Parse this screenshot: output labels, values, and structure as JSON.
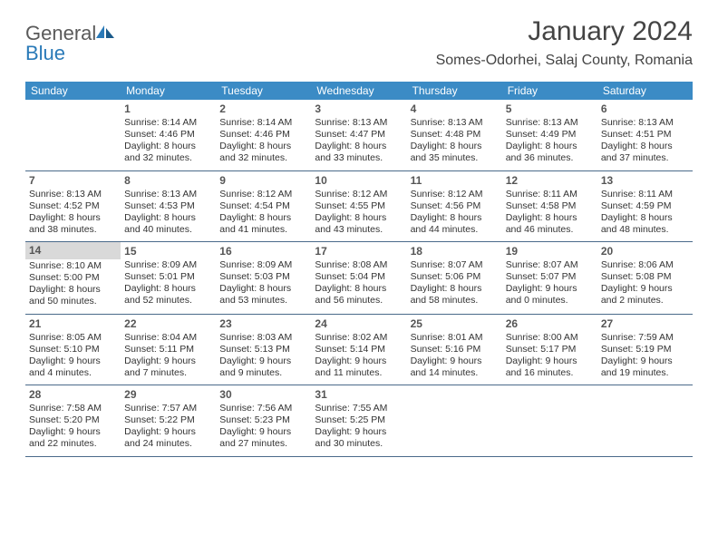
{
  "logo": {
    "word1": "General",
    "word2": "Blue"
  },
  "title": "January 2024",
  "location": "Somes-Odorhei, Salaj County, Romania",
  "day_headers": [
    "Sunday",
    "Monday",
    "Tuesday",
    "Wednesday",
    "Thursday",
    "Friday",
    "Saturday"
  ],
  "colors": {
    "header_bg": "#3b8bc5",
    "header_text": "#ffffff",
    "row_border": "#4a6a8a",
    "highlight_bg": "#d9d9d9",
    "logo_general": "#5a5a5a",
    "logo_blue": "#2a7ab8",
    "title_color": "#444444",
    "body_text": "#333333",
    "background": "#ffffff"
  },
  "typography": {
    "title_fontsize": 30,
    "location_fontsize": 16,
    "dayheader_fontsize": 12,
    "daynum_fontsize": 12,
    "cell_fontsize": 10.5,
    "logo_fontsize": 22
  },
  "weeks": [
    [
      {
        "day": "",
        "sunrise": "",
        "sunset": "",
        "daylight1": "",
        "daylight2": ""
      },
      {
        "day": "1",
        "sunrise": "Sunrise: 8:14 AM",
        "sunset": "Sunset: 4:46 PM",
        "daylight1": "Daylight: 8 hours",
        "daylight2": "and 32 minutes."
      },
      {
        "day": "2",
        "sunrise": "Sunrise: 8:14 AM",
        "sunset": "Sunset: 4:46 PM",
        "daylight1": "Daylight: 8 hours",
        "daylight2": "and 32 minutes."
      },
      {
        "day": "3",
        "sunrise": "Sunrise: 8:13 AM",
        "sunset": "Sunset: 4:47 PM",
        "daylight1": "Daylight: 8 hours",
        "daylight2": "and 33 minutes."
      },
      {
        "day": "4",
        "sunrise": "Sunrise: 8:13 AM",
        "sunset": "Sunset: 4:48 PM",
        "daylight1": "Daylight: 8 hours",
        "daylight2": "and 35 minutes."
      },
      {
        "day": "5",
        "sunrise": "Sunrise: 8:13 AM",
        "sunset": "Sunset: 4:49 PM",
        "daylight1": "Daylight: 8 hours",
        "daylight2": "and 36 minutes."
      },
      {
        "day": "6",
        "sunrise": "Sunrise: 8:13 AM",
        "sunset": "Sunset: 4:51 PM",
        "daylight1": "Daylight: 8 hours",
        "daylight2": "and 37 minutes."
      }
    ],
    [
      {
        "day": "7",
        "sunrise": "Sunrise: 8:13 AM",
        "sunset": "Sunset: 4:52 PM",
        "daylight1": "Daylight: 8 hours",
        "daylight2": "and 38 minutes."
      },
      {
        "day": "8",
        "sunrise": "Sunrise: 8:13 AM",
        "sunset": "Sunset: 4:53 PM",
        "daylight1": "Daylight: 8 hours",
        "daylight2": "and 40 minutes."
      },
      {
        "day": "9",
        "sunrise": "Sunrise: 8:12 AM",
        "sunset": "Sunset: 4:54 PM",
        "daylight1": "Daylight: 8 hours",
        "daylight2": "and 41 minutes."
      },
      {
        "day": "10",
        "sunrise": "Sunrise: 8:12 AM",
        "sunset": "Sunset: 4:55 PM",
        "daylight1": "Daylight: 8 hours",
        "daylight2": "and 43 minutes."
      },
      {
        "day": "11",
        "sunrise": "Sunrise: 8:12 AM",
        "sunset": "Sunset: 4:56 PM",
        "daylight1": "Daylight: 8 hours",
        "daylight2": "and 44 minutes."
      },
      {
        "day": "12",
        "sunrise": "Sunrise: 8:11 AM",
        "sunset": "Sunset: 4:58 PM",
        "daylight1": "Daylight: 8 hours",
        "daylight2": "and 46 minutes."
      },
      {
        "day": "13",
        "sunrise": "Sunrise: 8:11 AM",
        "sunset": "Sunset: 4:59 PM",
        "daylight1": "Daylight: 8 hours",
        "daylight2": "and 48 minutes."
      }
    ],
    [
      {
        "day": "14",
        "sunrise": "Sunrise: 8:10 AM",
        "sunset": "Sunset: 5:00 PM",
        "daylight1": "Daylight: 8 hours",
        "daylight2": "and 50 minutes.",
        "highlight": true
      },
      {
        "day": "15",
        "sunrise": "Sunrise: 8:09 AM",
        "sunset": "Sunset: 5:01 PM",
        "daylight1": "Daylight: 8 hours",
        "daylight2": "and 52 minutes."
      },
      {
        "day": "16",
        "sunrise": "Sunrise: 8:09 AM",
        "sunset": "Sunset: 5:03 PM",
        "daylight1": "Daylight: 8 hours",
        "daylight2": "and 53 minutes."
      },
      {
        "day": "17",
        "sunrise": "Sunrise: 8:08 AM",
        "sunset": "Sunset: 5:04 PM",
        "daylight1": "Daylight: 8 hours",
        "daylight2": "and 56 minutes."
      },
      {
        "day": "18",
        "sunrise": "Sunrise: 8:07 AM",
        "sunset": "Sunset: 5:06 PM",
        "daylight1": "Daylight: 8 hours",
        "daylight2": "and 58 minutes."
      },
      {
        "day": "19",
        "sunrise": "Sunrise: 8:07 AM",
        "sunset": "Sunset: 5:07 PM",
        "daylight1": "Daylight: 9 hours",
        "daylight2": "and 0 minutes."
      },
      {
        "day": "20",
        "sunrise": "Sunrise: 8:06 AM",
        "sunset": "Sunset: 5:08 PM",
        "daylight1": "Daylight: 9 hours",
        "daylight2": "and 2 minutes."
      }
    ],
    [
      {
        "day": "21",
        "sunrise": "Sunrise: 8:05 AM",
        "sunset": "Sunset: 5:10 PM",
        "daylight1": "Daylight: 9 hours",
        "daylight2": "and 4 minutes."
      },
      {
        "day": "22",
        "sunrise": "Sunrise: 8:04 AM",
        "sunset": "Sunset: 5:11 PM",
        "daylight1": "Daylight: 9 hours",
        "daylight2": "and 7 minutes."
      },
      {
        "day": "23",
        "sunrise": "Sunrise: 8:03 AM",
        "sunset": "Sunset: 5:13 PM",
        "daylight1": "Daylight: 9 hours",
        "daylight2": "and 9 minutes."
      },
      {
        "day": "24",
        "sunrise": "Sunrise: 8:02 AM",
        "sunset": "Sunset: 5:14 PM",
        "daylight1": "Daylight: 9 hours",
        "daylight2": "and 11 minutes."
      },
      {
        "day": "25",
        "sunrise": "Sunrise: 8:01 AM",
        "sunset": "Sunset: 5:16 PM",
        "daylight1": "Daylight: 9 hours",
        "daylight2": "and 14 minutes."
      },
      {
        "day": "26",
        "sunrise": "Sunrise: 8:00 AM",
        "sunset": "Sunset: 5:17 PM",
        "daylight1": "Daylight: 9 hours",
        "daylight2": "and 16 minutes."
      },
      {
        "day": "27",
        "sunrise": "Sunrise: 7:59 AM",
        "sunset": "Sunset: 5:19 PM",
        "daylight1": "Daylight: 9 hours",
        "daylight2": "and 19 minutes."
      }
    ],
    [
      {
        "day": "28",
        "sunrise": "Sunrise: 7:58 AM",
        "sunset": "Sunset: 5:20 PM",
        "daylight1": "Daylight: 9 hours",
        "daylight2": "and 22 minutes."
      },
      {
        "day": "29",
        "sunrise": "Sunrise: 7:57 AM",
        "sunset": "Sunset: 5:22 PM",
        "daylight1": "Daylight: 9 hours",
        "daylight2": "and 24 minutes."
      },
      {
        "day": "30",
        "sunrise": "Sunrise: 7:56 AM",
        "sunset": "Sunset: 5:23 PM",
        "daylight1": "Daylight: 9 hours",
        "daylight2": "and 27 minutes."
      },
      {
        "day": "31",
        "sunrise": "Sunrise: 7:55 AM",
        "sunset": "Sunset: 5:25 PM",
        "daylight1": "Daylight: 9 hours",
        "daylight2": "and 30 minutes."
      },
      {
        "day": "",
        "sunrise": "",
        "sunset": "",
        "daylight1": "",
        "daylight2": ""
      },
      {
        "day": "",
        "sunrise": "",
        "sunset": "",
        "daylight1": "",
        "daylight2": ""
      },
      {
        "day": "",
        "sunrise": "",
        "sunset": "",
        "daylight1": "",
        "daylight2": ""
      }
    ]
  ]
}
